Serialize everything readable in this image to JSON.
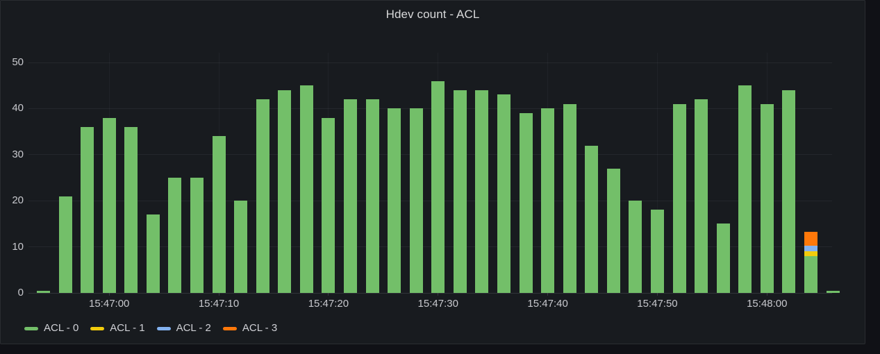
{
  "panel": {
    "title": "Hdev count - ACL"
  },
  "colors": {
    "page_bg": "#101116",
    "panel_bg": "#181b1f",
    "green": "#73bf69",
    "yellow": "#f2cc0c",
    "blue": "#83b2f0",
    "orange": "#ff780a",
    "tick_text": "#c7c8cd",
    "title_text": "#d8d9da"
  },
  "chart_data": {
    "type": "bar",
    "stacked": true,
    "title": "Hdev count - ACL",
    "xlabel": "",
    "ylabel": "",
    "ylim": [
      0,
      52
    ],
    "grid": true,
    "legend_position": "bottom-left",
    "x": [
      "15:46:54",
      "15:46:56",
      "15:46:58",
      "15:47:00",
      "15:47:02",
      "15:47:04",
      "15:47:06",
      "15:47:08",
      "15:47:10",
      "15:47:12",
      "15:47:14",
      "15:47:16",
      "15:47:18",
      "15:47:20",
      "15:47:22",
      "15:47:24",
      "15:47:26",
      "15:47:28",
      "15:47:30",
      "15:47:32",
      "15:47:34",
      "15:47:36",
      "15:47:38",
      "15:47:40",
      "15:47:42",
      "15:47:44",
      "15:47:46",
      "15:47:48",
      "15:47:50",
      "15:47:52",
      "15:47:54",
      "15:47:56",
      "15:47:58",
      "15:48:00",
      "15:48:02",
      "15:48:04",
      "15:48:06"
    ],
    "x_tick_labels": [
      "15:47:00",
      "15:47:10",
      "15:47:20",
      "15:47:30",
      "15:47:40",
      "15:47:50",
      "15:48:00"
    ],
    "y_ticks": [
      0,
      10,
      20,
      30,
      40,
      50
    ],
    "series": [
      {
        "name": "ACL - 0",
        "color": "#73bf69",
        "values": [
          0.4,
          21,
          36,
          38,
          36,
          17,
          25,
          25,
          34,
          20,
          42,
          44,
          45,
          38,
          42,
          42,
          40,
          40,
          46,
          44,
          44,
          43,
          39,
          40,
          41,
          32,
          27,
          20,
          18,
          41,
          42,
          15,
          45,
          41,
          44,
          8,
          0.4
        ]
      },
      {
        "name": "ACL - 1",
        "color": "#f2cc0c",
        "values": [
          0,
          0,
          0,
          0,
          0,
          0,
          0,
          0,
          0,
          0,
          0,
          0,
          0,
          0,
          0,
          0,
          0,
          0,
          0,
          0,
          0,
          0,
          0,
          0,
          0,
          0,
          0,
          0,
          0,
          0,
          0,
          0,
          0,
          0,
          0,
          1,
          0
        ]
      },
      {
        "name": "ACL - 2",
        "color": "#83b2f0",
        "values": [
          0,
          0,
          0,
          0,
          0,
          0,
          0,
          0,
          0,
          0,
          0,
          0,
          0,
          0,
          0,
          0,
          0,
          0,
          0,
          0,
          0,
          0,
          0,
          0,
          0,
          0,
          0,
          0,
          0,
          0,
          0,
          0,
          0,
          0,
          0,
          1.2,
          0
        ]
      },
      {
        "name": "ACL - 3",
        "color": "#ff780a",
        "values": [
          0,
          0,
          0,
          0,
          0,
          0,
          0,
          0,
          0,
          0,
          0,
          0,
          0,
          0,
          0,
          0,
          0,
          0,
          0,
          0,
          0,
          0,
          0,
          0,
          0,
          0,
          0,
          0,
          0,
          0,
          0,
          0,
          0,
          0,
          0,
          3,
          0
        ]
      }
    ]
  }
}
